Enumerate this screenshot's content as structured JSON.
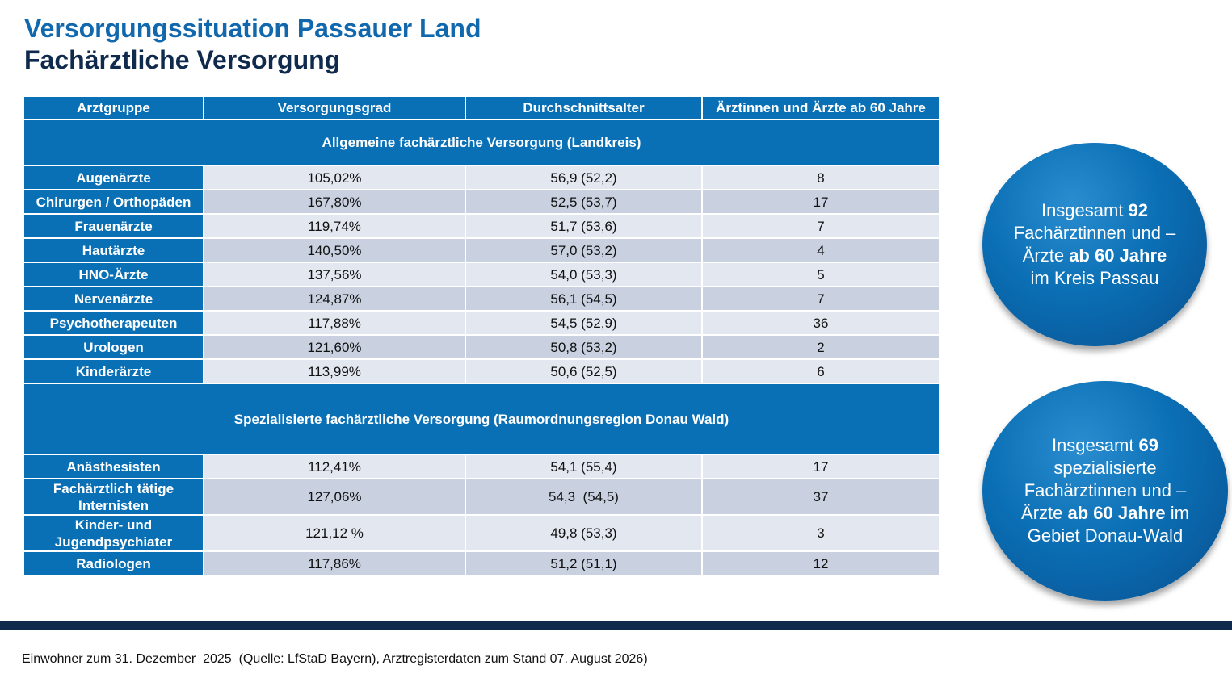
{
  "title": "Versorgungssituation Passauer Land",
  "subtitle": "Fachärztliche Versorgung",
  "table": {
    "headers": [
      "Arztgruppe",
      "Versorgungsgrad",
      "Durchschnittsalter",
      "Ärztinnen und Ärzte ab 60 Jahre"
    ],
    "section1": "Allgemeine fachärztliche Versorgung (Landkreis)",
    "rows1": [
      [
        "Augenärzte",
        "105,02%",
        "56,9 (52,2)",
        "8"
      ],
      [
        "Chirurgen / Orthopäden",
        "167,80%",
        "52,5 (53,7)",
        "17"
      ],
      [
        "Frauenärzte",
        "119,74%",
        "51,7 (53,6)",
        "7"
      ],
      [
        "Hautärzte",
        "140,50%",
        "57,0 (53,2)",
        "4"
      ],
      [
        "HNO-Ärzte",
        "137,56%",
        "54,0 (53,3)",
        "5"
      ],
      [
        "Nervenärzte",
        "124,87%",
        "56,1 (54,5)",
        "7"
      ],
      [
        "Psychotherapeuten",
        "117,88%",
        "54,5 (52,9)",
        "36"
      ],
      [
        "Urologen",
        "121,60%",
        "50,8 (53,2)",
        "2"
      ],
      [
        "Kinderärzte",
        "113,99%",
        "50,6 (52,5)",
        "6"
      ]
    ],
    "section2": "Spezialisierte fachärztliche Versorgung (Raumordnungsregion Donau Wald)",
    "rows2": [
      [
        "Anästhesisten",
        "112,41%",
        "54,1 (55,4)",
        "17"
      ],
      [
        "Fachärztlich tätige Internisten",
        "127,06%",
        "54,3  (54,5)",
        "37"
      ],
      [
        "Kinder- und Jugendpsychiater",
        "121,12 %",
        "49,8 (53,3)",
        "3"
      ],
      [
        "Radiologen",
        "117,86%",
        "51,2 (51,1)",
        "12"
      ]
    ]
  },
  "circle1": {
    "t1": "Insgesamt ",
    "b1": "92",
    "t2": " Fachärztinnen und –Ärzte ",
    "b2": "ab 60 Jahre",
    "t3": " im Kreis Passau"
  },
  "circle2": {
    "t1": "Insgesamt ",
    "b1": "69",
    "t2": " spezialisierte Fachärztinnen und –Ärzte ",
    "b2": "ab 60 Jahre",
    "t3": " im Gebiet Donau-Wald"
  },
  "footer": "Einwohner zum 31. Dezember  2025  (Quelle: LfStaD Bayern), Arztregisterdaten zum Stand 07. August 2026)"
}
